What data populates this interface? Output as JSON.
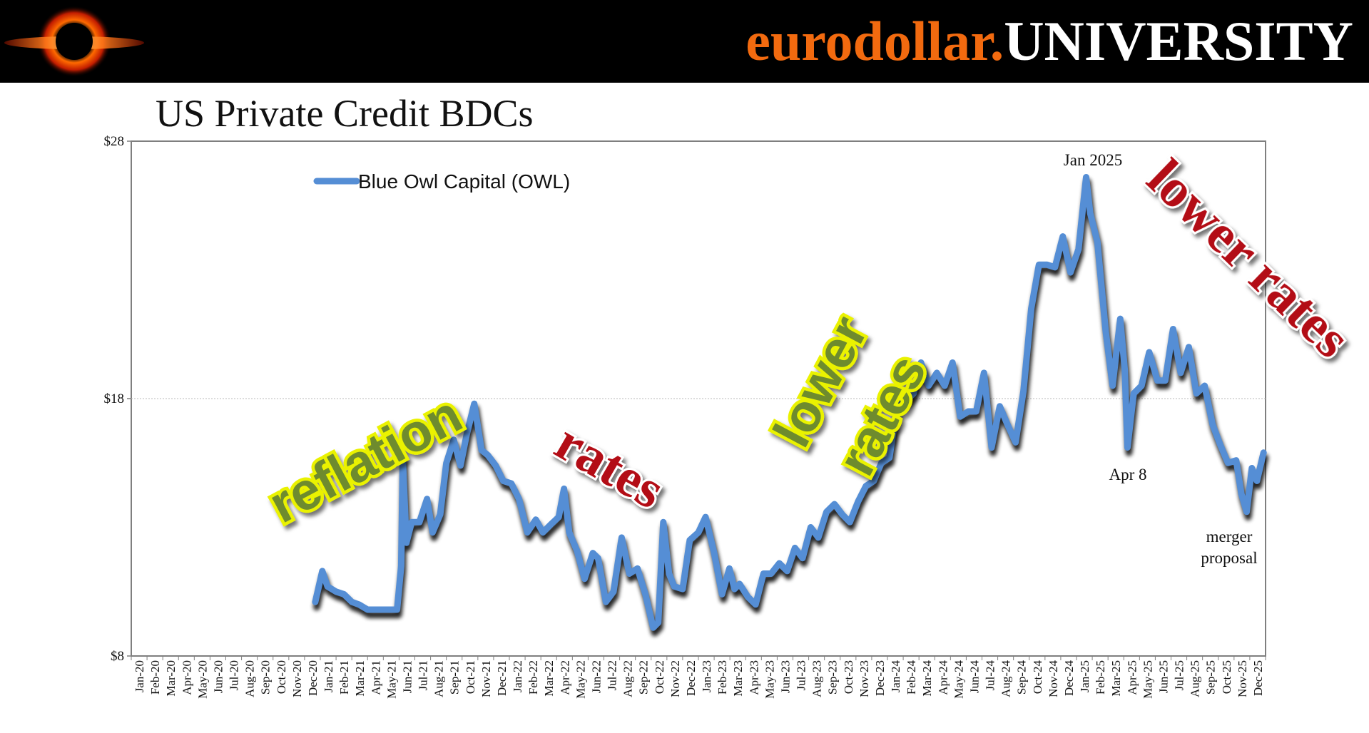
{
  "brand": {
    "part1": "eurodollar.",
    "part2": "UNIVERSITY"
  },
  "chart_data": {
    "type": "line",
    "title": "US Private Credit BDCs",
    "ylim": [
      8,
      28
    ],
    "y_ticks": [
      "$8",
      "$18",
      "$28"
    ],
    "x_labels": [
      "Jan-20",
      "Feb-20",
      "Mar-20",
      "Apr-20",
      "May-20",
      "Jun-20",
      "Jul-20",
      "Aug-20",
      "Sep-20",
      "Oct-20",
      "Nov-20",
      "Dec-20",
      "Jan-21",
      "Feb-21",
      "Mar-21",
      "Apr-21",
      "May-21",
      "Jun-21",
      "Jul-21",
      "Aug-21",
      "Sep-21",
      "Oct-21",
      "Nov-21",
      "Dec-21",
      "Jan-22",
      "Feb-22",
      "Mar-22",
      "Apr-22",
      "May-22",
      "Jun-22",
      "Jul-22",
      "Aug-22",
      "Sep-22",
      "Oct-22",
      "Nov-22",
      "Dec-22",
      "Jan-23",
      "Feb-23",
      "Mar-23",
      "Apr-23",
      "May-23",
      "Jun-23",
      "Jul-23",
      "Aug-23",
      "Sep-23",
      "Oct-23",
      "Nov-23",
      "Dec-23",
      "Jan-24",
      "Feb-24",
      "Mar-24",
      "Apr-24",
      "May-24",
      "Jun-24",
      "Jul-24",
      "Aug-24",
      "Sep-24",
      "Oct-24",
      "Nov-24",
      "Dec-24",
      "Jan-25",
      "Feb-25",
      "Mar-25",
      "Apr-25",
      "May-25",
      "Jun-25",
      "Jul-25",
      "Aug-25",
      "Sep-25",
      "Oct-25",
      "Nov-25",
      "Dec-25"
    ],
    "gridlines": "horizontal at $18",
    "legend_position": "top-left",
    "series": [
      {
        "name": "Blue Owl Capital (OWL)",
        "color": "#558ed5",
        "x": [
          "2020-12-22",
          "2021-01-05",
          "2021-01-15",
          "2021-02-01",
          "2021-02-15",
          "2021-03-01",
          "2021-03-15",
          "2021-04-01",
          "2021-04-15",
          "2021-05-01",
          "2021-05-15",
          "2021-05-28",
          "2021-06-05",
          "2021-06-08",
          "2021-06-15",
          "2021-06-25",
          "2021-07-10",
          "2021-07-25",
          "2021-08-05",
          "2021-08-20",
          "2021-09-01",
          "2021-09-15",
          "2021-09-28",
          "2021-10-10",
          "2021-10-25",
          "2021-11-08",
          "2021-11-20",
          "2021-12-05",
          "2021-12-20",
          "2022-01-05",
          "2022-01-20",
          "2022-02-05",
          "2022-02-20",
          "2022-03-05",
          "2022-03-20",
          "2022-04-05",
          "2022-04-15",
          "2022-04-25",
          "2022-05-10",
          "2022-05-25",
          "2022-06-10",
          "2022-06-20",
          "2022-07-05",
          "2022-07-20",
          "2022-08-05",
          "2022-08-20",
          "2022-09-05",
          "2022-09-20",
          "2022-10-05",
          "2022-10-15",
          "2022-10-25",
          "2022-11-05",
          "2022-11-15",
          "2022-12-01",
          "2022-12-15",
          "2023-01-01",
          "2023-01-15",
          "2023-02-01",
          "2023-02-15",
          "2023-02-28",
          "2023-03-10",
          "2023-03-20",
          "2023-04-05",
          "2023-04-20",
          "2023-05-05",
          "2023-05-20",
          "2023-06-05",
          "2023-06-20",
          "2023-07-05",
          "2023-07-20",
          "2023-08-05",
          "2023-08-20",
          "2023-09-05",
          "2023-09-20",
          "2023-10-05",
          "2023-10-20",
          "2023-11-05",
          "2023-11-20",
          "2023-12-05",
          "2023-12-20",
          "2024-01-05",
          "2024-01-20",
          "2024-02-05",
          "2024-02-20",
          "2024-03-05",
          "2024-03-20",
          "2024-04-05",
          "2024-04-20",
          "2024-05-05",
          "2024-05-20",
          "2024-06-05",
          "2024-06-20",
          "2024-07-05",
          "2024-07-20",
          "2024-08-05",
          "2024-08-20",
          "2024-09-05",
          "2024-09-20",
          "2024-10-05",
          "2024-10-20",
          "2024-11-05",
          "2024-11-20",
          "2024-12-05",
          "2024-12-20",
          "2025-01-05",
          "2025-01-20",
          "2025-01-28",
          "2025-02-10",
          "2025-02-25",
          "2025-03-10",
          "2025-03-25",
          "2025-04-03",
          "2025-04-08",
          "2025-04-20",
          "2025-05-05",
          "2025-05-20",
          "2025-06-05",
          "2025-06-20",
          "2025-07-05",
          "2025-07-20",
          "2025-08-05",
          "2025-08-20",
          "2025-09-05",
          "2025-09-20",
          "2025-10-05",
          "2025-10-20",
          "2025-11-05",
          "2025-11-15",
          "2025-11-25",
          "2025-12-05",
          "2025-12-15",
          "2025-12-28"
        ],
        "y": [
          10.1,
          11.3,
          10.7,
          10.5,
          10.4,
          10.1,
          10.0,
          9.8,
          9.8,
          9.8,
          9.8,
          9.8,
          11.5,
          15.7,
          12.4,
          13.2,
          13.2,
          14.1,
          12.8,
          13.5,
          15.5,
          16.4,
          15.4,
          16.6,
          17.8,
          16.0,
          15.8,
          15.4,
          14.8,
          14.7,
          14.1,
          12.8,
          13.3,
          12.8,
          13.1,
          13.4,
          14.5,
          12.8,
          12.1,
          11.0,
          12.0,
          11.8,
          10.1,
          10.5,
          12.6,
          11.2,
          11.4,
          10.4,
          9.1,
          9.3,
          13.2,
          11.2,
          10.7,
          10.6,
          12.5,
          12.8,
          13.4,
          12.0,
          10.4,
          11.4,
          10.6,
          10.8,
          10.3,
          10.0,
          11.2,
          11.2,
          11.6,
          11.3,
          12.2,
          11.8,
          13.0,
          12.6,
          13.6,
          13.9,
          13.5,
          13.2,
          14.0,
          14.6,
          14.8,
          15.5,
          15.7,
          17.7,
          17.9,
          18.2,
          19.4,
          18.5,
          19.0,
          18.5,
          19.4,
          17.3,
          17.5,
          17.5,
          19.0,
          16.1,
          17.7,
          17.0,
          16.3,
          18.3,
          21.5,
          23.2,
          23.2,
          23.1,
          24.3,
          22.9,
          23.8,
          26.6,
          25.2,
          24.1,
          20.6,
          18.5,
          21.1,
          19.1,
          16.1,
          18.2,
          18.5,
          19.8,
          18.7,
          18.7,
          20.7,
          19.0,
          20.0,
          18.2,
          18.5,
          17.0,
          16.2,
          15.5,
          15.6,
          14.3,
          13.6,
          15.3,
          14.8,
          15.9
        ]
      }
    ],
    "annotations": [
      "Jan 2025",
      "Apr 8",
      "merger",
      "proposal"
    ],
    "overlay_text": [
      "reflation",
      "rates",
      "lower",
      "rates",
      "lower rates"
    ]
  }
}
